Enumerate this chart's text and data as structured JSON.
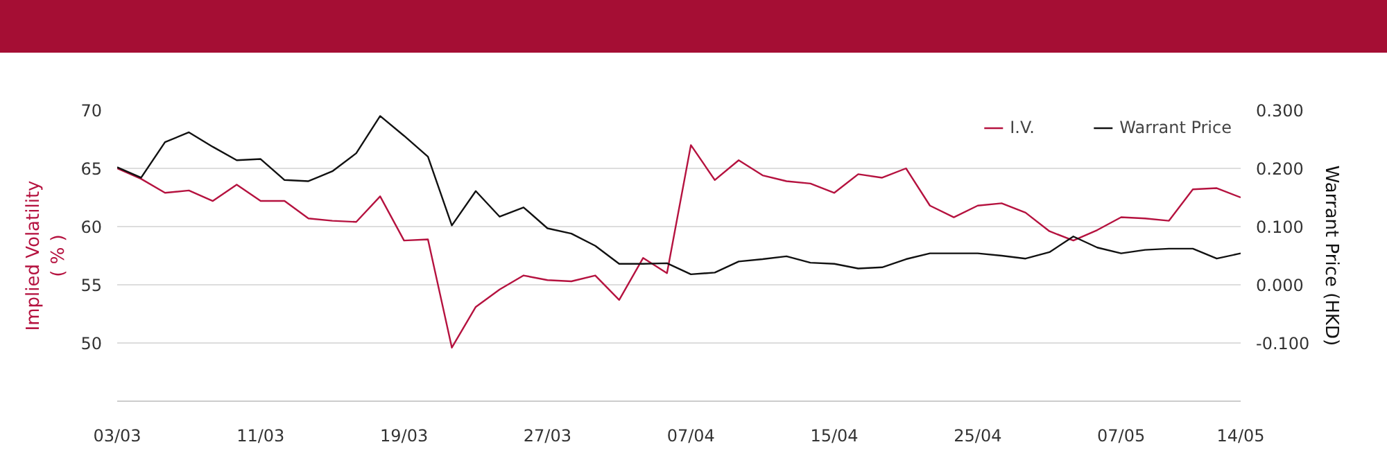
{
  "chart_data": {
    "type": "line",
    "categories": [
      "03/03",
      null,
      null,
      null,
      null,
      null,
      "11/03",
      null,
      null,
      null,
      null,
      null,
      "19/03",
      null,
      null,
      null,
      null,
      null,
      "27/03",
      null,
      null,
      null,
      null,
      null,
      "07/04",
      null,
      null,
      null,
      null,
      null,
      "15/04",
      null,
      null,
      null,
      null,
      null,
      "25/04",
      null,
      null,
      null,
      null,
      null,
      "07/05",
      null,
      null,
      null,
      null,
      "14/05"
    ],
    "series": [
      {
        "name": "I.V.",
        "color": "#b5123f",
        "axis": "y",
        "values": [
          65.0,
          64.1,
          62.9,
          63.1,
          62.2,
          63.6,
          62.2,
          62.2,
          60.7,
          60.5,
          60.4,
          62.6,
          58.8,
          58.9,
          49.6,
          53.1,
          54.6,
          55.8,
          55.4,
          55.3,
          55.8,
          53.7,
          57.3,
          56.0,
          67.0,
          64.0,
          65.7,
          64.4,
          63.9,
          63.7,
          62.9,
          64.5,
          64.2,
          65.0,
          61.8,
          60.8,
          61.8,
          62.0,
          61.2,
          59.6,
          58.8,
          59.7,
          60.8,
          60.7,
          60.5,
          63.2,
          63.3,
          62.5
        ]
      },
      {
        "name": "Warrant Price",
        "color": "#111111",
        "axis": "y2",
        "values": [
          0.202,
          0.184,
          0.245,
          0.262,
          0.237,
          0.214,
          0.216,
          0.18,
          0.178,
          0.195,
          0.226,
          0.29,
          0.256,
          0.22,
          0.102,
          0.161,
          0.117,
          0.133,
          0.097,
          0.088,
          0.067,
          0.036,
          0.036,
          0.037,
          0.018,
          0.021,
          0.04,
          0.044,
          0.049,
          0.038,
          0.036,
          0.028,
          0.03,
          0.044,
          0.054,
          0.054,
          0.054,
          0.05,
          0.045,
          0.056,
          0.083,
          0.064,
          0.054,
          0.06,
          0.062,
          0.062,
          0.045,
          0.054
        ]
      }
    ],
    "ylabel": "Implied Volatility\n( % )",
    "y2label": "Warrant Price (HKD)",
    "ylim": [
      45,
      70
    ],
    "yticks": [
      50,
      55,
      60,
      65,
      70
    ],
    "y2lim": [
      -0.2,
      0.3
    ],
    "y2ticks": [
      {
        "value": -0.1,
        "label": "-0.100"
      },
      {
        "value": 0.0,
        "label": "0.000"
      },
      {
        "value": 0.1,
        "label": "0.100"
      },
      {
        "value": 0.2,
        "label": "0.200"
      },
      {
        "value": 0.3,
        "label": "0.300"
      }
    ],
    "grid": "y",
    "legend": "top right",
    "marker": "none",
    "line_style": "solid"
  }
}
